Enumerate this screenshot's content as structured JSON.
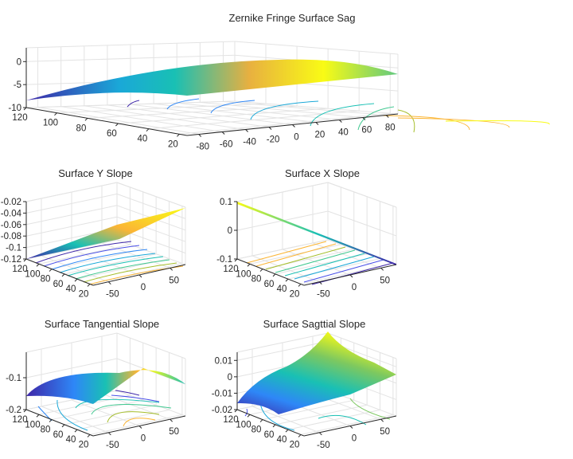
{
  "chart_data": [
    {
      "type": "surface",
      "title": "Zernike Fringe Surface Sag",
      "zticks": [
        0,
        -5,
        -10
      ],
      "zlim": [
        -10,
        3
      ],
      "yticks": [
        120,
        100,
        80,
        60,
        40,
        20
      ],
      "ylim": [
        15,
        120
      ],
      "xticks": [
        -80,
        -60,
        -40,
        -20,
        0,
        20,
        40,
        60,
        80
      ],
      "xlim": [
        -90,
        90
      ],
      "grid": true,
      "colormap": "parula",
      "contours": true
    },
    {
      "type": "surface",
      "title": "Surface Y Slope",
      "zticks": [
        -0.02,
        -0.04,
        -0.06,
        -0.08,
        -0.1,
        -0.12
      ],
      "zlim": [
        -0.12,
        -0.02
      ],
      "yticks": [
        120,
        100,
        80,
        60,
        40,
        20
      ],
      "ylim": [
        15,
        120
      ],
      "xticks": [
        -50,
        0,
        50
      ],
      "xlim": [
        -75,
        75
      ],
      "grid": true,
      "colormap": "parula",
      "contours": true
    },
    {
      "type": "surface",
      "title": "Surface X Slope",
      "zticks": [
        0.1,
        0,
        -0.1
      ],
      "zlim": [
        -0.1,
        0.1
      ],
      "yticks": [
        120,
        100,
        80,
        60,
        40,
        20
      ],
      "ylim": [
        15,
        120
      ],
      "xticks": [
        -50,
        0,
        50
      ],
      "xlim": [
        -75,
        75
      ],
      "grid": true,
      "colormap": "parula",
      "contours": true
    },
    {
      "type": "surface",
      "title": "Surface Tangential Slope",
      "zticks": [
        -0.1,
        -0.2
      ],
      "zlim": [
        -0.2,
        -0.02
      ],
      "yticks": [
        120,
        100,
        80,
        60,
        40,
        20
      ],
      "ylim": [
        15,
        120
      ],
      "xticks": [
        -50,
        0,
        50
      ],
      "xlim": [
        -75,
        75
      ],
      "grid": true,
      "colormap": "parula",
      "contours": true
    },
    {
      "type": "surface",
      "title": "Surface Sagttial Slope",
      "zticks": [
        0.01,
        0,
        -0.01,
        -0.02
      ],
      "zlim": [
        -0.02,
        0.015
      ],
      "yticks": [
        120,
        100,
        80,
        60,
        40,
        20
      ],
      "ylim": [
        15,
        120
      ],
      "xticks": [
        -50,
        0,
        50
      ],
      "xlim": [
        -75,
        75
      ],
      "grid": true,
      "colormap": "parula",
      "contours": true
    }
  ],
  "colors": {
    "parula": [
      "#3e26a8",
      "#2e87f7",
      "#19c0b4",
      "#a5be2a",
      "#fbb535",
      "#f9fb15"
    ]
  }
}
